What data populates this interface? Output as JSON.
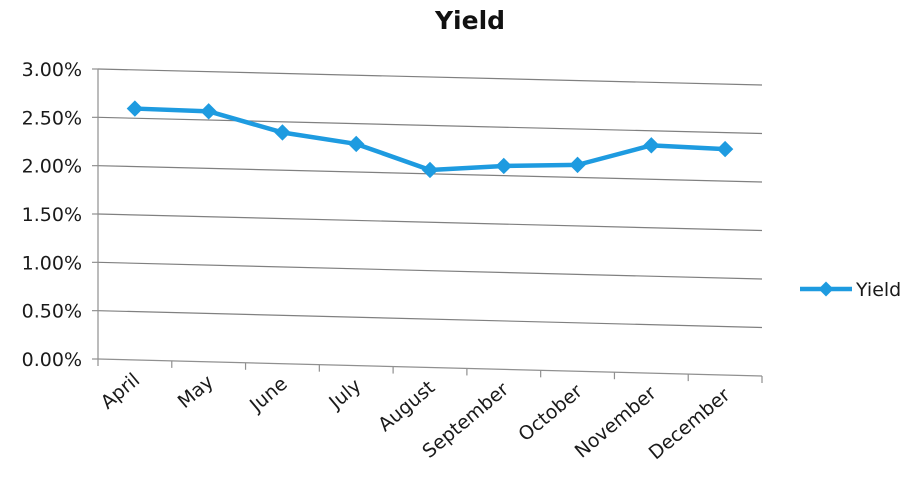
{
  "chart_data": {
    "type": "line",
    "title": "Yield",
    "xlabel": "",
    "ylabel": "",
    "categories": [
      "April",
      "May",
      "June",
      "July",
      "August",
      "September",
      "October",
      "November",
      "December"
    ],
    "series": [
      {
        "name": "Yield",
        "values": [
          0.026,
          0.0259,
          0.0239,
          0.0229,
          0.0204,
          0.021,
          0.0213,
          0.0235,
          0.0233
        ],
        "color": "#1E9BE0"
      }
    ],
    "ylim": [
      0,
      0.03
    ],
    "y_ticks": [
      {
        "value": 0.0,
        "label": "0.00%"
      },
      {
        "value": 0.005,
        "label": "0.50%"
      },
      {
        "value": 0.01,
        "label": "1.00%"
      },
      {
        "value": 0.015,
        "label": "1.50%"
      },
      {
        "value": 0.02,
        "label": "2.00%"
      },
      {
        "value": 0.025,
        "label": "2.50%"
      },
      {
        "value": 0.03,
        "label": "3.00%"
      }
    ],
    "grid": true,
    "legend": "right",
    "gridline_color": "#808080",
    "axis_color": "#909090"
  }
}
